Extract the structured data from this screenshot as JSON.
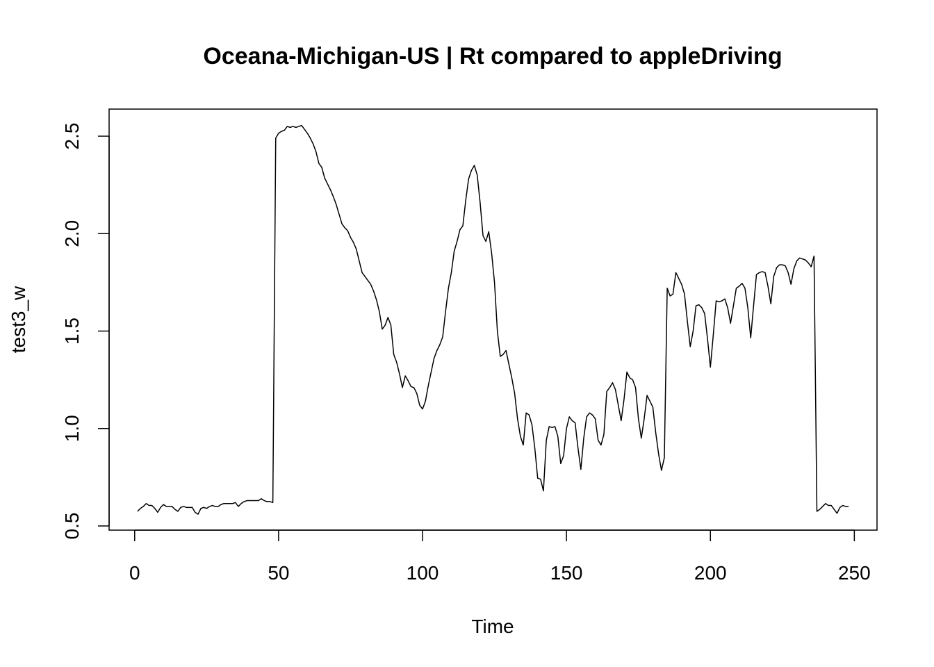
{
  "chart_data": {
    "type": "line",
    "title": "Oceana-Michigan-US | Rt compared to appleDriving",
    "xlabel": "Time",
    "ylabel": "test3_w",
    "x": [
      1,
      2,
      3,
      4,
      5,
      6,
      7,
      8,
      9,
      10,
      11,
      12,
      13,
      14,
      15,
      16,
      17,
      18,
      19,
      20,
      21,
      22,
      23,
      24,
      25,
      26,
      27,
      28,
      29,
      30,
      31,
      32,
      33,
      34,
      35,
      36,
      37,
      38,
      39,
      40,
      41,
      42,
      43,
      44,
      45,
      46,
      47,
      48,
      49,
      50,
      51,
      52,
      53,
      54,
      55,
      56,
      57,
      58,
      59,
      60,
      61,
      62,
      63,
      64,
      65,
      66,
      67,
      68,
      69,
      70,
      71,
      72,
      73,
      74,
      75,
      76,
      77,
      78,
      79,
      80,
      81,
      82,
      83,
      84,
      85,
      86,
      87,
      88,
      89,
      90,
      91,
      92,
      93,
      94,
      95,
      96,
      97,
      98,
      99,
      100,
      101,
      102,
      103,
      104,
      105,
      106,
      107,
      108,
      109,
      110,
      111,
      112,
      113,
      114,
      115,
      116,
      117,
      118,
      119,
      120,
      121,
      122,
      123,
      124,
      125,
      126,
      127,
      128,
      129,
      130,
      131,
      132,
      133,
      134,
      135,
      136,
      137,
      138,
      139,
      140,
      141,
      142,
      143,
      144,
      145,
      146,
      147,
      148,
      149,
      150,
      151,
      152,
      153,
      154,
      155,
      156,
      157,
      158,
      159,
      160,
      161,
      162,
      163,
      164,
      165,
      166,
      167,
      168,
      169,
      170,
      171,
      172,
      173,
      174,
      175,
      176,
      177,
      178,
      179,
      180,
      181,
      182,
      183,
      184,
      185,
      186,
      187,
      188,
      189,
      190,
      191,
      192,
      193,
      194,
      195,
      196,
      197,
      198,
      199,
      200,
      201,
      202,
      203,
      204,
      205,
      206,
      207,
      208,
      209,
      210,
      211,
      212,
      213,
      214,
      215,
      216,
      217,
      218,
      219,
      220,
      221,
      222,
      223,
      224,
      225,
      226,
      227,
      228,
      229,
      230,
      231,
      232,
      233,
      234,
      235,
      236,
      237,
      238,
      239,
      240,
      241,
      242,
      243,
      244,
      245,
      246,
      247,
      248
    ],
    "series": [
      {
        "name": "test3_w",
        "color": "#000000",
        "values": [
          0.575,
          0.59,
          0.6,
          0.615,
          0.605,
          0.605,
          0.59,
          0.57,
          0.595,
          0.61,
          0.6,
          0.6,
          0.6,
          0.585,
          0.575,
          0.595,
          0.6,
          0.595,
          0.595,
          0.595,
          0.57,
          0.56,
          0.59,
          0.595,
          0.59,
          0.6,
          0.605,
          0.6,
          0.6,
          0.61,
          0.615,
          0.615,
          0.615,
          0.615,
          0.62,
          0.6,
          0.615,
          0.625,
          0.63,
          0.63,
          0.63,
          0.63,
          0.63,
          0.64,
          0.63,
          0.625,
          0.625,
          0.62,
          2.49,
          2.515,
          2.525,
          2.53,
          2.55,
          2.545,
          2.55,
          2.545,
          2.55,
          2.555,
          2.535,
          2.515,
          2.49,
          2.46,
          2.42,
          2.36,
          2.34,
          2.285,
          2.255,
          2.225,
          2.19,
          2.15,
          2.1,
          2.05,
          2.03,
          2.015,
          1.98,
          1.955,
          1.92,
          1.86,
          1.8,
          1.78,
          1.76,
          1.74,
          1.705,
          1.66,
          1.6,
          1.51,
          1.53,
          1.57,
          1.53,
          1.38,
          1.34,
          1.28,
          1.21,
          1.27,
          1.245,
          1.215,
          1.21,
          1.18,
          1.12,
          1.1,
          1.14,
          1.22,
          1.29,
          1.36,
          1.4,
          1.43,
          1.47,
          1.6,
          1.72,
          1.8,
          1.91,
          1.96,
          2.02,
          2.04,
          2.17,
          2.28,
          2.325,
          2.35,
          2.3,
          2.16,
          1.99,
          1.96,
          2.01,
          1.9,
          1.75,
          1.5,
          1.37,
          1.38,
          1.4,
          1.33,
          1.26,
          1.18,
          1.05,
          0.96,
          0.915,
          1.08,
          1.07,
          1.02,
          0.9,
          0.745,
          0.74,
          0.68,
          0.94,
          1.01,
          1.005,
          1.01,
          0.96,
          0.82,
          0.86,
          1.0,
          1.06,
          1.04,
          1.03,
          0.9,
          0.79,
          0.95,
          1.06,
          1.08,
          1.07,
          1.05,
          0.94,
          0.915,
          0.97,
          1.19,
          1.21,
          1.235,
          1.2,
          1.12,
          1.04,
          1.15,
          1.29,
          1.26,
          1.25,
          1.21,
          1.05,
          0.95,
          1.05,
          1.17,
          1.14,
          1.11,
          0.98,
          0.87,
          0.785,
          0.85,
          1.72,
          1.68,
          1.69,
          1.8,
          1.77,
          1.74,
          1.69,
          1.55,
          1.42,
          1.5,
          1.63,
          1.635,
          1.62,
          1.59,
          1.46,
          1.315,
          1.48,
          1.655,
          1.65,
          1.655,
          1.665,
          1.62,
          1.54,
          1.63,
          1.72,
          1.73,
          1.745,
          1.72,
          1.62,
          1.465,
          1.63,
          1.79,
          1.8,
          1.805,
          1.8,
          1.73,
          1.64,
          1.78,
          1.825,
          1.84,
          1.84,
          1.835,
          1.8,
          1.74,
          1.82,
          1.86,
          1.875,
          1.87,
          1.865,
          1.85,
          1.83,
          1.885,
          0.575,
          0.585,
          0.6,
          0.615,
          0.605,
          0.605,
          0.585,
          0.565,
          0.595,
          0.605,
          0.6,
          0.6
        ]
      }
    ],
    "xlim": [
      -8.88,
      257.88
    ],
    "xticks": [
      0,
      50,
      100,
      150,
      200,
      250
    ],
    "ylim": [
      0.4786,
      2.639
    ],
    "yticks": [
      0.5,
      {
        "value": 1,
        "label": "1.0"
      },
      1.5,
      {
        "value": 2,
        "label": "2.0"
      },
      2.5
    ]
  }
}
